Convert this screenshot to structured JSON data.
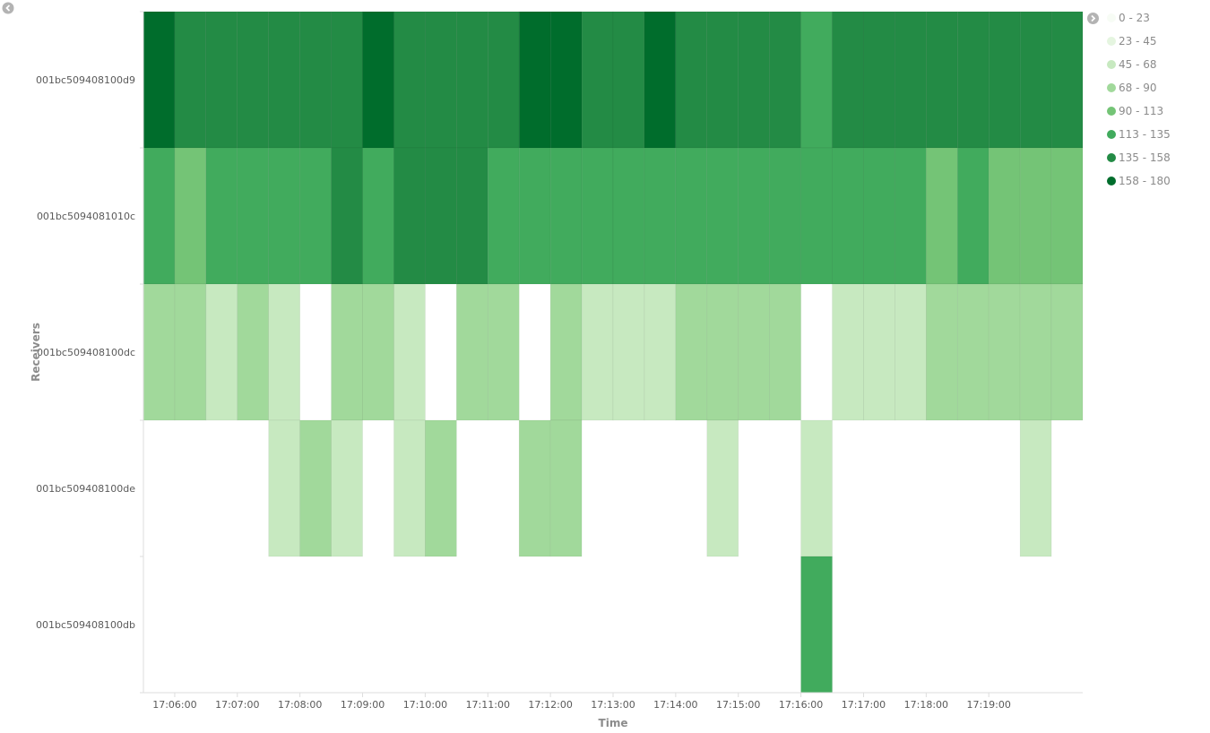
{
  "chart_data": {
    "type": "heatmap",
    "xlabel": "Time",
    "ylabel": "Receivers",
    "rows": [
      "001bc509408100d9",
      "001bc5094081010c",
      "001bc509408100dc",
      "001bc509408100de",
      "001bc509408100db"
    ],
    "x_ticks": [
      "17:06:00",
      "17:07:00",
      "17:08:00",
      "17:09:00",
      "17:10:00",
      "17:11:00",
      "17:12:00",
      "17:13:00",
      "17:14:00",
      "17:15:00",
      "17:16:00",
      "17:17:00",
      "17:18:00",
      "17:19:00"
    ],
    "color_ranges": [
      "0 - 23",
      "23 - 45",
      "45 - 68",
      "68 - 90",
      "90 - 113",
      "113 - 135",
      "135 - 158",
      "158 - 180"
    ],
    "colors": [
      "#f7fcf5",
      "#e5f5e0",
      "#c7e9c0",
      "#a1d99b",
      "#74c476",
      "#41ab5d",
      "#238b45",
      "#006d2c"
    ],
    "cell_interval_seconds": 30,
    "x_start": "17:05:30",
    "note_bins": "values are color-bin indices 0-7 (see color_ranges); null = no data",
    "values": [
      [
        7,
        6,
        6,
        6,
        6,
        6,
        6,
        7,
        6,
        6,
        6,
        6,
        7,
        7,
        6,
        6,
        7,
        6,
        6,
        6,
        6,
        5,
        6,
        6,
        6,
        6,
        6,
        6,
        6,
        6
      ],
      [
        5,
        4,
        5,
        5,
        5,
        5,
        6,
        5,
        6,
        6,
        6,
        5,
        5,
        5,
        5,
        5,
        5,
        5,
        5,
        5,
        5,
        5,
        5,
        5,
        5,
        4,
        5,
        4,
        4,
        4
      ],
      [
        3,
        3,
        2,
        3,
        2,
        null,
        3,
        3,
        2,
        null,
        3,
        3,
        null,
        3,
        2,
        2,
        2,
        3,
        3,
        3,
        3,
        null,
        2,
        2,
        2,
        3,
        3,
        3,
        3,
        3
      ],
      [
        null,
        null,
        null,
        null,
        2,
        3,
        2,
        null,
        2,
        3,
        null,
        null,
        3,
        3,
        null,
        null,
        null,
        null,
        2,
        null,
        null,
        2,
        null,
        null,
        null,
        null,
        null,
        null,
        2,
        null
      ],
      [
        null,
        null,
        null,
        null,
        null,
        null,
        null,
        null,
        null,
        null,
        null,
        null,
        null,
        null,
        null,
        null,
        null,
        null,
        null,
        null,
        null,
        5,
        null,
        null,
        null,
        null,
        null,
        null,
        null,
        null
      ]
    ]
  }
}
